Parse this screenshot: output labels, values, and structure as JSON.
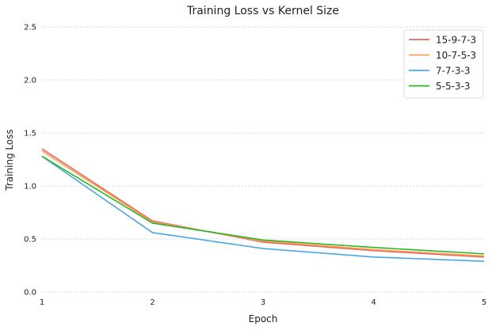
{
  "chart_data": {
    "type": "line",
    "title": "Training Loss vs Kernel Size",
    "xlabel": "Epoch",
    "ylabel": "Training Loss",
    "x": [
      1,
      2,
      3,
      4,
      5
    ],
    "xlim": [
      1,
      5
    ],
    "ylim": [
      0.0,
      2.5
    ],
    "x_ticks": [
      "1",
      "2",
      "3",
      "4",
      "5"
    ],
    "y_ticks": [
      "0.0",
      "0.5",
      "1.0",
      "1.5",
      "2.0",
      "2.5"
    ],
    "grid": true,
    "legend_position": "top-right",
    "series": [
      {
        "name": "15-9-7-3",
        "color": "#e06666",
        "values": [
          1.35,
          0.67,
          0.47,
          0.39,
          0.33
        ]
      },
      {
        "name": "10-7-5-3",
        "color": "#ff9f4a",
        "values": [
          1.33,
          0.66,
          0.48,
          0.4,
          0.34
        ]
      },
      {
        "name": "7-7-3-3",
        "color": "#4da6e8",
        "values": [
          1.28,
          0.56,
          0.41,
          0.33,
          0.29
        ]
      },
      {
        "name": "5-5-3-3",
        "color": "#2ab52a",
        "values": [
          1.28,
          0.65,
          0.49,
          0.42,
          0.36
        ]
      }
    ]
  }
}
